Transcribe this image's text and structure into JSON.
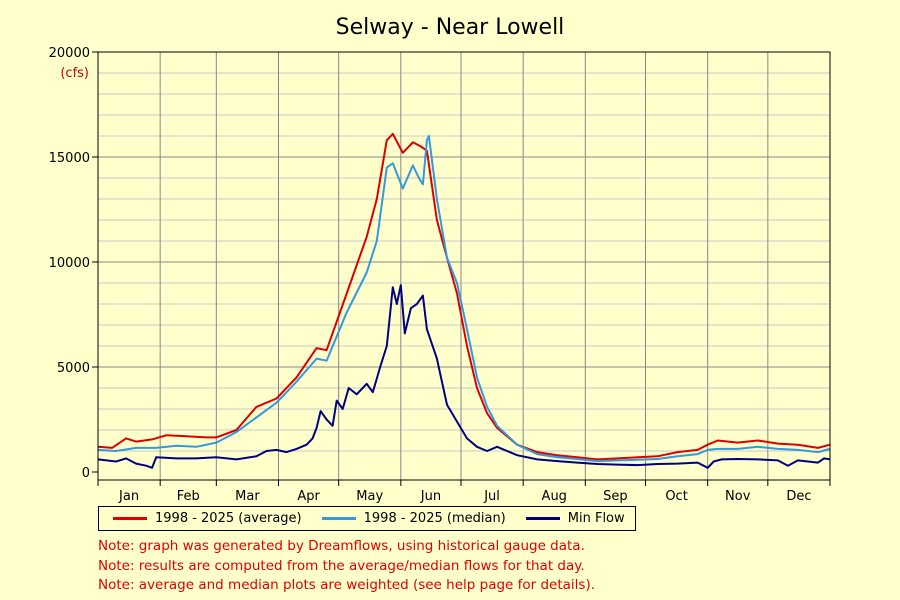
{
  "chart_data": {
    "type": "line",
    "title": "Selway - Near Lowell",
    "unit_label": "(cfs)",
    "ylim": [
      0,
      20000
    ],
    "y_ticks": [
      0,
      5000,
      10000,
      15000,
      20000
    ],
    "y_tick_labels": [
      "0",
      "5000",
      "10000",
      "15000",
      "20000"
    ],
    "x_ticks": [
      "Jan",
      "Feb",
      "Mar",
      "Apr",
      "May",
      "Jun",
      "Jul",
      "Aug",
      "Sep",
      "Oct",
      "Nov",
      "Dec"
    ],
    "x_unit": "day of year",
    "xlim": [
      1,
      366
    ],
    "grid": true,
    "legend_position": "bottom",
    "series": [
      {
        "name": "1998 - 2025 (average)",
        "color": "#dd0000",
        "points": [
          [
            1,
            1200
          ],
          [
            8,
            1150
          ],
          [
            15,
            1600
          ],
          [
            20,
            1450
          ],
          [
            28,
            1550
          ],
          [
            35,
            1750
          ],
          [
            45,
            1700
          ],
          [
            55,
            1650
          ],
          [
            60,
            1650
          ],
          [
            70,
            2000
          ],
          [
            80,
            3100
          ],
          [
            90,
            3500
          ],
          [
            100,
            4500
          ],
          [
            110,
            5900
          ],
          [
            115,
            5800
          ],
          [
            125,
            8500
          ],
          [
            135,
            11200
          ],
          [
            140,
            13000
          ],
          [
            145,
            15800
          ],
          [
            148,
            16100
          ],
          [
            153,
            15200
          ],
          [
            158,
            15700
          ],
          [
            162,
            15500
          ],
          [
            165,
            15300
          ],
          [
            170,
            12000
          ],
          [
            175,
            10200
          ],
          [
            180,
            8500
          ],
          [
            185,
            6000
          ],
          [
            190,
            4000
          ],
          [
            195,
            2800
          ],
          [
            200,
            2100
          ],
          [
            210,
            1300
          ],
          [
            220,
            950
          ],
          [
            230,
            800
          ],
          [
            240,
            700
          ],
          [
            250,
            600
          ],
          [
            260,
            650
          ],
          [
            270,
            700
          ],
          [
            280,
            750
          ],
          [
            290,
            950
          ],
          [
            300,
            1050
          ],
          [
            305,
            1300
          ],
          [
            310,
            1500
          ],
          [
            320,
            1400
          ],
          [
            330,
            1500
          ],
          [
            340,
            1350
          ],
          [
            350,
            1300
          ],
          [
            360,
            1150
          ],
          [
            366,
            1300
          ]
        ]
      },
      {
        "name": "1998 - 2025 (median)",
        "color": "#3399dd",
        "points": [
          [
            1,
            1050
          ],
          [
            10,
            1000
          ],
          [
            20,
            1150
          ],
          [
            30,
            1150
          ],
          [
            40,
            1250
          ],
          [
            50,
            1200
          ],
          [
            60,
            1400
          ],
          [
            70,
            1900
          ],
          [
            80,
            2600
          ],
          [
            90,
            3300
          ],
          [
            100,
            4300
          ],
          [
            110,
            5400
          ],
          [
            115,
            5300
          ],
          [
            125,
            7600
          ],
          [
            135,
            9500
          ],
          [
            140,
            11000
          ],
          [
            145,
            14500
          ],
          [
            148,
            14700
          ],
          [
            153,
            13500
          ],
          [
            158,
            14600
          ],
          [
            161,
            14000
          ],
          [
            163,
            13700
          ],
          [
            165,
            15800
          ],
          [
            166,
            16000
          ],
          [
            170,
            13000
          ],
          [
            175,
            10200
          ],
          [
            180,
            9000
          ],
          [
            185,
            6800
          ],
          [
            190,
            4500
          ],
          [
            195,
            3100
          ],
          [
            200,
            2200
          ],
          [
            210,
            1300
          ],
          [
            220,
            850
          ],
          [
            230,
            700
          ],
          [
            240,
            620
          ],
          [
            250,
            520
          ],
          [
            260,
            550
          ],
          [
            270,
            580
          ],
          [
            280,
            620
          ],
          [
            290,
            750
          ],
          [
            300,
            850
          ],
          [
            305,
            1050
          ],
          [
            310,
            1100
          ],
          [
            320,
            1100
          ],
          [
            330,
            1200
          ],
          [
            340,
            1100
          ],
          [
            350,
            1050
          ],
          [
            360,
            950
          ],
          [
            366,
            1100
          ]
        ]
      },
      {
        "name": "Min Flow",
        "color": "#000080",
        "points": [
          [
            1,
            600
          ],
          [
            10,
            500
          ],
          [
            15,
            650
          ],
          [
            20,
            400
          ],
          [
            25,
            300
          ],
          [
            28,
            200
          ],
          [
            30,
            700
          ],
          [
            40,
            650
          ],
          [
            50,
            650
          ],
          [
            60,
            700
          ],
          [
            70,
            600
          ],
          [
            80,
            750
          ],
          [
            85,
            1000
          ],
          [
            90,
            1050
          ],
          [
            95,
            950
          ],
          [
            100,
            1100
          ],
          [
            105,
            1300
          ],
          [
            108,
            1600
          ],
          [
            110,
            2100
          ],
          [
            112,
            2900
          ],
          [
            115,
            2500
          ],
          [
            118,
            2200
          ],
          [
            120,
            3400
          ],
          [
            123,
            3000
          ],
          [
            126,
            4000
          ],
          [
            130,
            3700
          ],
          [
            135,
            4200
          ],
          [
            138,
            3800
          ],
          [
            142,
            5100
          ],
          [
            145,
            6000
          ],
          [
            148,
            8800
          ],
          [
            150,
            8000
          ],
          [
            152,
            8900
          ],
          [
            154,
            6600
          ],
          [
            157,
            7800
          ],
          [
            160,
            8000
          ],
          [
            163,
            8400
          ],
          [
            165,
            6800
          ],
          [
            170,
            5400
          ],
          [
            175,
            3200
          ],
          [
            180,
            2400
          ],
          [
            185,
            1600
          ],
          [
            190,
            1200
          ],
          [
            195,
            1000
          ],
          [
            200,
            1200
          ],
          [
            210,
            800
          ],
          [
            220,
            600
          ],
          [
            230,
            520
          ],
          [
            240,
            450
          ],
          [
            250,
            380
          ],
          [
            260,
            350
          ],
          [
            270,
            330
          ],
          [
            280,
            380
          ],
          [
            290,
            400
          ],
          [
            300,
            450
          ],
          [
            305,
            200
          ],
          [
            308,
            500
          ],
          [
            312,
            600
          ],
          [
            320,
            620
          ],
          [
            330,
            600
          ],
          [
            340,
            550
          ],
          [
            345,
            300
          ],
          [
            350,
            550
          ],
          [
            360,
            450
          ],
          [
            363,
            650
          ],
          [
            366,
            600
          ]
        ]
      }
    ],
    "notes": [
      "Note: graph was generated by Dreamflows, using historical gauge data.",
      "Note: results are computed from the average/median flows for that day.",
      "Note: average and median plots are weighted (see help page for details)."
    ]
  }
}
